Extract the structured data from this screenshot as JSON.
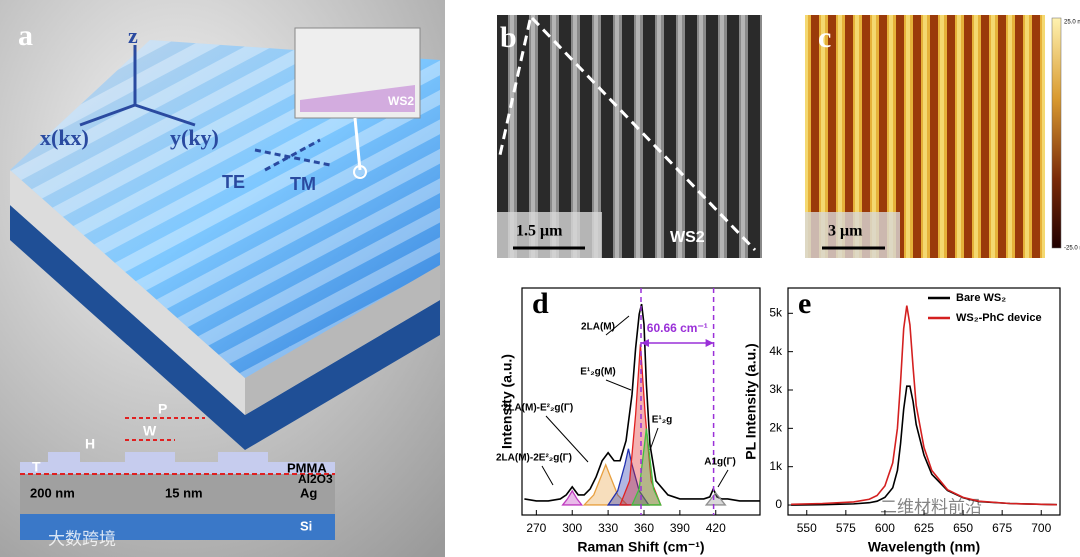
{
  "panels": {
    "a": {
      "label": "a",
      "axis_z": "z",
      "axis_x": "x(kx)",
      "axis_y": "y(ky)",
      "te": "TE",
      "tm": "TM",
      "inset": "WS2",
      "period": "P",
      "width": "W",
      "height": "H",
      "thickness": "T",
      "pmma": "PMMA",
      "al2o3": "Al2O3",
      "ag_thickness": "200 nm",
      "al2o3_thickness": "15 nm",
      "ag": "Ag",
      "si": "Si"
    },
    "b": {
      "label": "b",
      "scale_bar": "1.5 μm",
      "material": "WS2"
    },
    "c": {
      "label": "c",
      "scale_bar": "3 μm",
      "colorbar_max": "25.0 nm",
      "colorbar_min": "-25.0 nm"
    }
  },
  "watermarks": [
    "大数跨境",
    "二维材料前沿"
  ],
  "chart_data": [
    {
      "type": "line",
      "panel": "d",
      "xlabel": "Raman Shift (cm⁻¹)",
      "ylabel": "Intensity (a.u.)",
      "xlim": [
        258,
        457
      ],
      "ylim": [
        -0.05,
        1.08
      ],
      "xticks": [
        270,
        300,
        330,
        360,
        390,
        420
      ],
      "reference_lines": [
        357.5,
        418.2
      ],
      "reference_label": "60.66 cm⁻¹",
      "annotations": [
        "2LA(M)",
        "E¹₂g(M)",
        "2LA(M)-E²₂g(Γ)",
        "E¹₂g",
        "2LA(M)-2E²₂g(Γ)",
        "A1g(Γ)"
      ],
      "series": [
        {
          "name": "measured",
          "color": "#000000",
          "fill": false,
          "x": [
            260,
            270,
            280,
            290,
            295,
            300,
            305,
            310,
            315,
            320,
            325,
            330,
            335,
            340,
            345,
            350,
            353,
            356,
            358,
            360,
            362,
            365,
            370,
            380,
            390,
            400,
            410,
            415,
            418,
            421,
            425,
            430,
            440,
            450,
            457
          ],
          "values": [
            0.03,
            0.02,
            0.02,
            0.03,
            0.05,
            0.09,
            0.05,
            0.05,
            0.08,
            0.14,
            0.22,
            0.26,
            0.22,
            0.22,
            0.32,
            0.55,
            0.78,
            0.95,
            1.0,
            0.9,
            0.6,
            0.3,
            0.12,
            0.05,
            0.03,
            0.03,
            0.03,
            0.04,
            0.08,
            0.04,
            0.03,
            0.03,
            0.02,
            0.02,
            0.02
          ]
        },
        {
          "name": "2LA(M)-2E2g",
          "color": "#c03cc0",
          "fill": true,
          "x": [
            292,
            296,
            300,
            304,
            308
          ],
          "values": [
            0,
            0.03,
            0.07,
            0.03,
            0
          ]
        },
        {
          "name": "2LA(M)-E2g",
          "color": "#e8a040",
          "fill": true,
          "x": [
            310,
            318,
            324,
            328,
            332,
            338,
            346
          ],
          "values": [
            0,
            0.05,
            0.14,
            0.2,
            0.14,
            0.05,
            0
          ]
        },
        {
          "name": "E2g(M)",
          "color": "#2030b0",
          "fill": true,
          "x": [
            330,
            338,
            344,
            347,
            350,
            356,
            364
          ],
          "values": [
            0,
            0.07,
            0.2,
            0.28,
            0.2,
            0.07,
            0
          ]
        },
        {
          "name": "2LA(M)",
          "color": "#e02020",
          "fill": true,
          "x": [
            340,
            348,
            353,
            357,
            361,
            366,
            374
          ],
          "values": [
            0,
            0.12,
            0.45,
            0.8,
            0.45,
            0.12,
            0
          ]
        },
        {
          "name": "E2g",
          "color": "#40c040",
          "fill": true,
          "x": [
            350,
            356,
            360,
            362,
            364,
            368,
            374
          ],
          "values": [
            0,
            0.08,
            0.28,
            0.38,
            0.28,
            0.08,
            0
          ]
        },
        {
          "name": "A1g",
          "color": "#909090",
          "fill": true,
          "x": [
            412,
            416,
            420,
            424,
            428
          ],
          "values": [
            0,
            0.03,
            0.06,
            0.03,
            0
          ]
        }
      ]
    },
    {
      "type": "line",
      "panel": "e",
      "xlabel": "Wavelength (nm)",
      "ylabel": "PL Intensity (a.u.)",
      "xlim": [
        538,
        712
      ],
      "ylim": [
        -260,
        5660
      ],
      "xticks": [
        550,
        575,
        600,
        625,
        650,
        675,
        700
      ],
      "yticks": [
        0,
        {
          "value": 1000,
          "label": "1k"
        },
        {
          "value": 2000,
          "label": "2k"
        },
        {
          "value": 3000,
          "label": "3k"
        },
        {
          "value": 4000,
          "label": "4k"
        },
        {
          "value": 5000,
          "label": "5k"
        }
      ],
      "legend": "upper right",
      "series": [
        {
          "name": "Bare WS₂",
          "color": "#000000",
          "fill": false,
          "x": [
            540,
            560,
            580,
            590,
            595,
            600,
            605,
            608,
            610,
            612,
            614,
            616,
            618,
            620,
            625,
            630,
            640,
            650,
            660,
            680,
            700,
            710
          ],
          "values": [
            0,
            10,
            30,
            60,
            100,
            200,
            450,
            900,
            1600,
            2500,
            3100,
            3100,
            2700,
            2100,
            1300,
            800,
            380,
            190,
            90,
            40,
            20,
            10
          ]
        },
        {
          "name": "WS₂-PhC device",
          "color": "#d42020",
          "fill": false,
          "x": [
            540,
            560,
            580,
            590,
            595,
            600,
            605,
            608,
            610,
            612,
            614,
            616,
            618,
            620,
            625,
            630,
            640,
            650,
            660,
            680,
            700,
            710
          ],
          "values": [
            20,
            40,
            80,
            150,
            250,
            500,
            1100,
            2000,
            3200,
            4600,
            5200,
            4700,
            3600,
            2600,
            1500,
            900,
            400,
            200,
            100,
            40,
            20,
            10
          ]
        }
      ]
    }
  ]
}
